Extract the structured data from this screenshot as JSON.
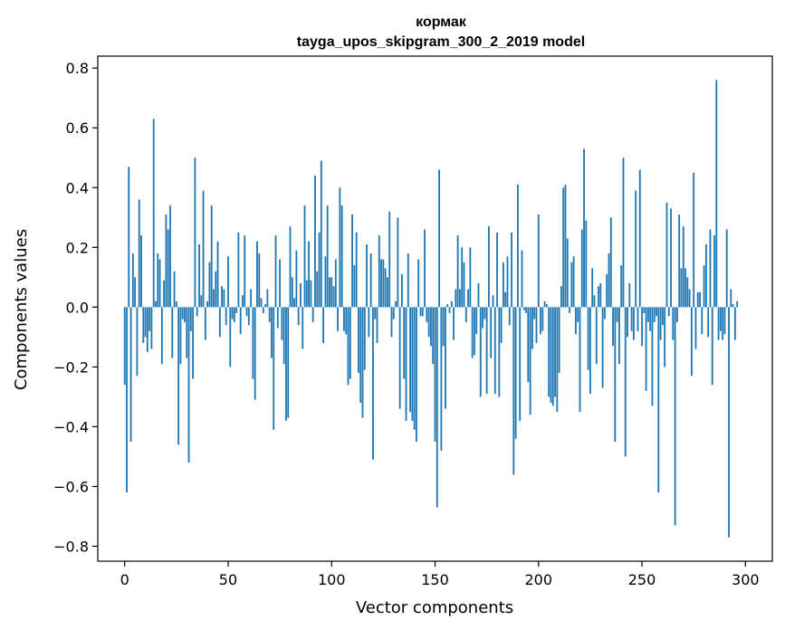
{
  "chart_data": {
    "type": "bar",
    "title_line1": "кормак",
    "title_line2": "tayga_upos_skipgram_300_2_2019 model",
    "xlabel": "Vector components",
    "ylabel": "Components values",
    "xlim": [
      -13,
      313
    ],
    "ylim": [
      -0.85,
      0.84
    ],
    "xticks": [
      0,
      50,
      100,
      150,
      200,
      250,
      300
    ],
    "xtick_labels": [
      "0",
      "50",
      "100",
      "150",
      "200",
      "250",
      "300"
    ],
    "yticks": [
      -0.8,
      -0.6,
      -0.4,
      -0.2,
      0.0,
      0.2,
      0.4,
      0.6,
      0.8
    ],
    "ytick_labels": [
      "−0.8",
      "−0.6",
      "−0.4",
      "−0.2",
      "0.0",
      "0.2",
      "0.4",
      "0.6",
      "0.8"
    ],
    "bar_color": "#1f77b4",
    "values": [
      -0.26,
      -0.62,
      0.47,
      -0.45,
      0.18,
      0.1,
      -0.23,
      0.36,
      0.24,
      -0.12,
      -0.1,
      -0.15,
      -0.08,
      -0.14,
      0.63,
      0.02,
      0.18,
      0.16,
      -0.19,
      0.09,
      0.31,
      0.26,
      0.34,
      -0.17,
      0.12,
      0.02,
      -0.46,
      -0.19,
      -0.04,
      -0.05,
      -0.17,
      -0.52,
      -0.08,
      -0.24,
      0.5,
      -0.03,
      0.21,
      0.04,
      0.39,
      -0.11,
      0.02,
      0.15,
      0.34,
      0.06,
      0.12,
      0.22,
      -0.1,
      0.07,
      0.06,
      -0.06,
      0.17,
      -0.2,
      -0.04,
      -0.05,
      -0.02,
      0.25,
      -0.09,
      0.04,
      0.24,
      -0.03,
      -0.06,
      0.06,
      -0.24,
      -0.31,
      0.22,
      0.18,
      0.03,
      -0.02,
      0.01,
      0.06,
      -0.05,
      -0.17,
      -0.41,
      0.24,
      -0.07,
      0.16,
      -0.11,
      -0.19,
      -0.38,
      -0.37,
      0.27,
      0.1,
      0.03,
      0.19,
      -0.06,
      0.08,
      -0.14,
      0.34,
      0.09,
      0.22,
      0.09,
      -0.05,
      0.44,
      0.12,
      0.25,
      0.49,
      -0.12,
      0.17,
      0.34,
      0.1,
      0.1,
      0.07,
      0.16,
      -0.08,
      0.4,
      0.34,
      -0.08,
      -0.09,
      -0.26,
      -0.24,
      0.31,
      0.14,
      0.25,
      -0.22,
      -0.32,
      -0.37,
      -0.21,
      0.21,
      -0.1,
      0.18,
      -0.51,
      -0.04,
      -0.12,
      0.24,
      0.16,
      0.16,
      0.13,
      0.1,
      0.32,
      -0.1,
      -0.04,
      0.02,
      0.3,
      -0.34,
      0.11,
      -0.24,
      -0.38,
      0.18,
      -0.35,
      -0.38,
      -0.41,
      -0.45,
      0.16,
      -0.03,
      -0.03,
      0.26,
      -0.05,
      -0.1,
      -0.13,
      -0.19,
      -0.45,
      -0.67,
      0.46,
      -0.48,
      -0.13,
      -0.34,
      0.01,
      -0.02,
      0.02,
      -0.11,
      0.06,
      0.24,
      0.06,
      0.2,
      0.15,
      -0.05,
      0.06,
      0.2,
      -0.17,
      -0.16,
      -0.09,
      0.08,
      -0.3,
      -0.07,
      -0.04,
      -0.29,
      0.27,
      -0.17,
      0.04,
      -0.29,
      0.25,
      -0.3,
      -0.12,
      0.15,
      0.05,
      0.17,
      -0.06,
      0.25,
      -0.56,
      -0.44,
      0.41,
      -0.38,
      0.19,
      -0.01,
      -0.02,
      -0.25,
      -0.36,
      -0.14,
      -0.04,
      -0.12,
      0.31,
      -0.09,
      -0.08,
      0.02,
      0.01,
      -0.3,
      -0.32,
      -0.33,
      -0.3,
      -0.35,
      -0.22,
      0.07,
      0.4,
      0.41,
      0.23,
      -0.02,
      0.15,
      0.17,
      -0.09,
      -0.05,
      -0.35,
      0.26,
      0.53,
      0.29,
      -0.21,
      -0.29,
      0.13,
      0.04,
      -0.19,
      0.07,
      0.08,
      -0.27,
      -0.04,
      0.11,
      0.18,
      0.3,
      -0.13,
      -0.45,
      -0.05,
      -0.19,
      0.14,
      0.5,
      -0.5,
      -0.1,
      0.08,
      -0.08,
      -0.11,
      0.39,
      -0.08,
      0.46,
      -0.13,
      -0.02,
      -0.28,
      -0.05,
      -0.08,
      -0.33,
      -0.05,
      -0.03,
      -0.62,
      -0.11,
      -0.06,
      -0.2,
      0.35,
      -0.03,
      0.33,
      -0.11,
      -0.73,
      -0.05,
      0.31,
      0.13,
      0.27,
      0.13,
      0.1,
      0.06,
      -0.23,
      0.45,
      -0.14,
      0.05,
      0.05,
      -0.09,
      0.14,
      0.21,
      -0.1,
      0.26,
      -0.26,
      0.24,
      0.76,
      -0.11,
      -0.08,
      -0.11,
      -0.09,
      0.26,
      -0.77,
      0.06,
      0.01,
      -0.11,
      0.02
    ]
  }
}
